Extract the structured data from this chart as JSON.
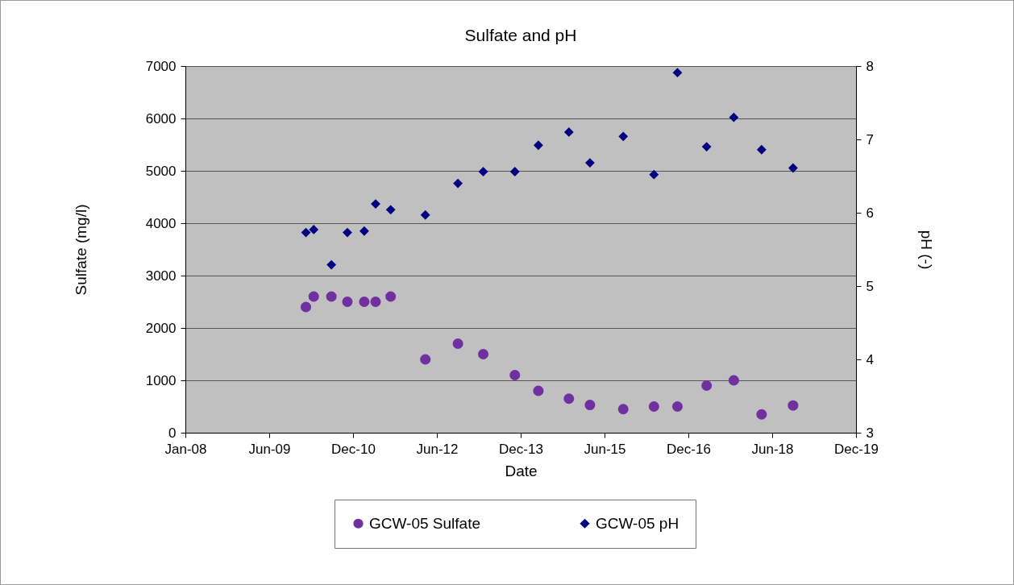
{
  "chart_data": {
    "type": "scatter",
    "title": "Sulfate and pH",
    "xlabel": "Date",
    "ylabel": "Sulfate (mg/l)",
    "y2label": "pH (-)",
    "xlim": [
      "2008-01-01",
      "2019-12-17"
    ],
    "xticks": [
      {
        "value": "2008-01-01",
        "label": "Jan-08"
      },
      {
        "value": "2009-06-30",
        "label": "Jun-09"
      },
      {
        "value": "2010-12-28",
        "label": "Dec-10"
      },
      {
        "value": "2012-06-26",
        "label": "Jun-12"
      },
      {
        "value": "2013-12-24",
        "label": "Dec-13"
      },
      {
        "value": "2015-06-23",
        "label": "Jun-15"
      },
      {
        "value": "2016-12-20",
        "label": "Dec-16"
      },
      {
        "value": "2018-06-19",
        "label": "Jun-18"
      },
      {
        "value": "2019-12-17",
        "label": "Dec-19"
      }
    ],
    "ylim": [
      0,
      7000
    ],
    "yticks": [
      0,
      1000,
      2000,
      3000,
      4000,
      5000,
      6000,
      7000
    ],
    "y2lim": [
      3,
      8
    ],
    "y2ticks": [
      3,
      4,
      5,
      6,
      7,
      8
    ],
    "grid": "y",
    "legend": "bottom",
    "series": [
      {
        "name": "GCW-05 Sulfate",
        "color": "#7030a0",
        "marker": "circle",
        "x": [
          "2010-02-24",
          "2010-04-16",
          "2010-08-09",
          "2010-11-21",
          "2011-03-11",
          "2011-05-24",
          "2011-08-30",
          "2012-04-12",
          "2012-11-10",
          "2013-04-24",
          "2013-11-16",
          "2014-04-18",
          "2014-11-03",
          "2015-03-20",
          "2015-10-23",
          "2016-05-10",
          "2016-10-10",
          "2017-04-18",
          "2017-10-12",
          "2018-04-11",
          "2018-11-02"
        ],
        "values": [
          2400,
          2600,
          2600,
          2500,
          2500,
          2500,
          2600,
          1400,
          1700,
          1500,
          1100,
          800,
          650,
          530,
          450,
          500,
          500,
          900,
          1000,
          350,
          520
        ]
      },
      {
        "name": "GCW-05 pH",
        "color": "#000080",
        "marker": "diamond",
        "axis": "y2",
        "x": [
          "2010-02-24",
          "2010-04-16",
          "2010-08-09",
          "2010-11-21",
          "2011-03-11",
          "2011-05-24",
          "2011-08-30",
          "2012-04-12",
          "2012-11-10",
          "2013-04-24",
          "2013-11-16",
          "2014-04-18",
          "2014-11-03",
          "2015-03-20",
          "2015-10-23",
          "2016-05-10",
          "2016-10-10",
          "2017-04-18",
          "2017-10-12",
          "2018-04-11",
          "2018-11-02"
        ],
        "values": [
          5.73,
          5.77,
          5.29,
          5.73,
          5.75,
          6.12,
          6.04,
          5.97,
          6.4,
          6.56,
          6.56,
          6.92,
          7.1,
          6.68,
          7.04,
          6.52,
          7.91,
          6.9,
          7.3,
          6.86,
          6.61
        ]
      }
    ]
  }
}
